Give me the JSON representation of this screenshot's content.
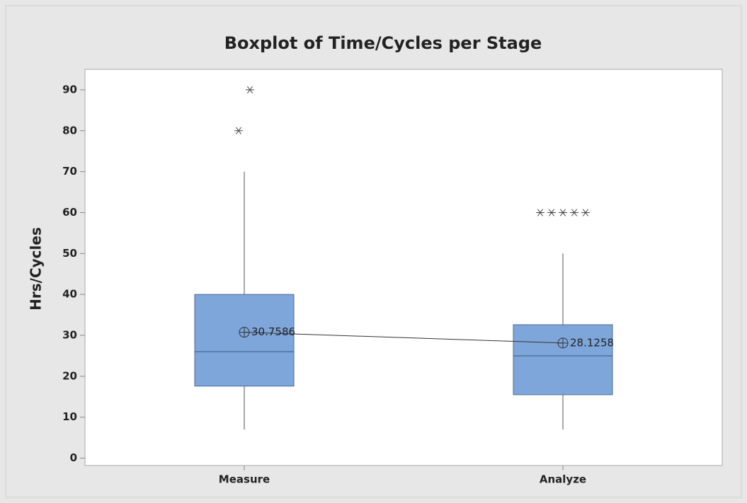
{
  "chart_data": {
    "type": "box",
    "title": "Boxplot of Time/Cycles per Stage",
    "ylabel": "Hrs/Cycles",
    "categories": [
      "Measure",
      "Analyze"
    ],
    "boxes": [
      {
        "whislo": 7,
        "q1": 17.6,
        "med": 26,
        "q3": 40,
        "whishi": 70,
        "mean": 30.7586,
        "fliers": [
          80,
          90
        ]
      },
      {
        "whislo": 7,
        "q1": 15.5,
        "med": 25,
        "q3": 32.6,
        "whishi": 50,
        "mean": 28.1258,
        "fliers": [
          60,
          60,
          60,
          60,
          60
        ]
      }
    ],
    "color": "#7ea6da",
    "edge_color": "#4a6b96",
    "ylim": [
      -1.8,
      95
    ],
    "yticks": [
      0,
      10,
      20,
      30,
      40,
      50,
      60,
      70,
      80,
      90
    ],
    "grid": false
  }
}
